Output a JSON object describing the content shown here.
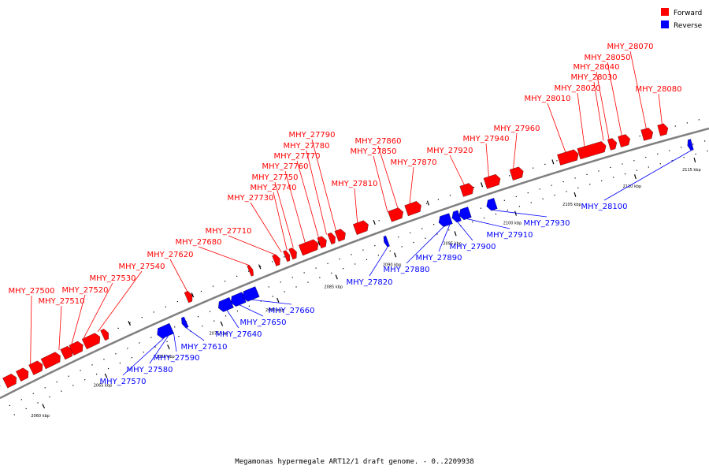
{
  "legend": {
    "forward": {
      "label": "Forward",
      "color": "#ff0000"
    },
    "reverse": {
      "label": "Reverse",
      "color": "#0000ff"
    }
  },
  "caption": "Megamonas hypermegale ART12/1 draft genome. - 0..2209938",
  "genome_axis": {
    "kbp_labels": [
      "2060 kbp",
      "2065 kbp",
      "2070 kbp",
      "2075 kbp",
      "2080 kbp",
      "2085 kbp",
      "2090 kbp",
      "2095 kbp",
      "2100 kbp",
      "2105 kbp",
      "2110 kbp",
      "2115 kbp"
    ]
  },
  "forward_genes": [
    "MHY_27500",
    "MHY_27510",
    "MHY_27520",
    "MHY_27530",
    "MHY_27540",
    "MHY_27620",
    "MHY_27680",
    "MHY_27710",
    "MHY_27730",
    "MHY_27740",
    "MHY_27750",
    "MHY_27760",
    "MHY_27770",
    "MHY_27780",
    "MHY_27790",
    "MHY_27810",
    "MHY_27850",
    "MHY_27860",
    "MHY_27870",
    "MHY_27920",
    "MHY_27940",
    "MHY_27960",
    "MHY_28010",
    "MHY_28020",
    "MHY_28030",
    "MHY_28040",
    "MHY_28050",
    "MHY_28070",
    "MHY_28080"
  ],
  "reverse_genes": [
    "MHY_27570",
    "MHY_27580",
    "MHY_27590",
    "MHY_27610",
    "MHY_27640",
    "MHY_27650",
    "MHY_27660",
    "MHY_27820",
    "MHY_27880",
    "MHY_27890",
    "MHY_27900",
    "MHY_27910",
    "MHY_27930",
    "MHY_28100"
  ]
}
